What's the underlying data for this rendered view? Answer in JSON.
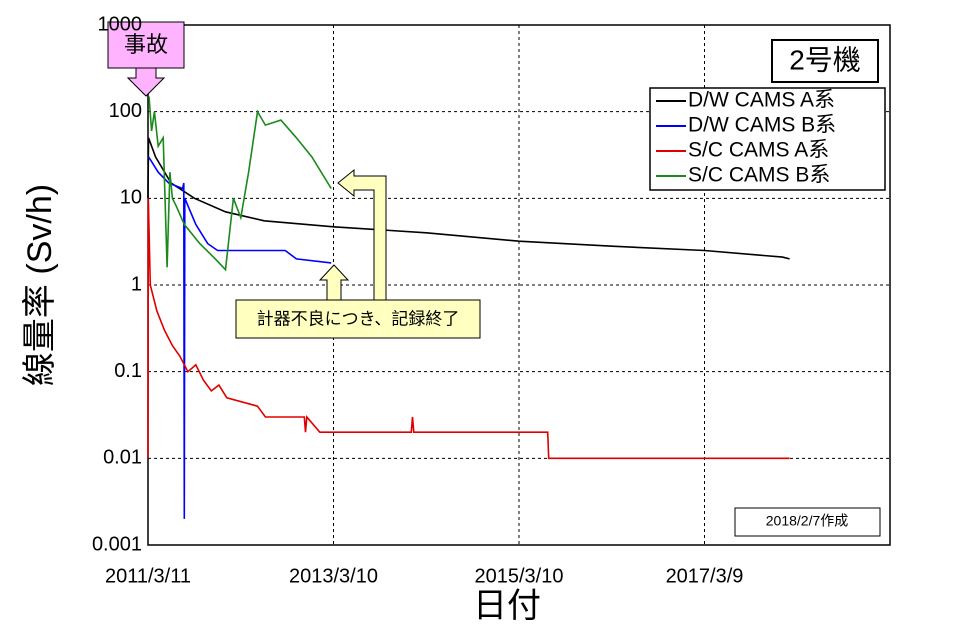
{
  "chart_data": {
    "type": "line",
    "title": "2号機",
    "xlabel": "日付",
    "ylabel": "線量率 (Sv/h)",
    "annotations": [
      "事故",
      "計器不良につき、記録終了",
      "2018/2/7作成"
    ],
    "log_y": true,
    "grid": true,
    "legend": "upper right",
    "xlim": [
      "2011/3/11",
      "2019/3/9"
    ],
    "xticks": [
      "2011/3/11",
      "2013/3/10",
      "2015/3/10",
      "2017/3/9"
    ],
    "ylim": [
      0.001,
      1000
    ],
    "yticks": [
      0.001,
      0.01,
      0.1,
      1,
      10,
      100,
      1000
    ],
    "series": [
      {
        "name": "D/W CAMS A系",
        "color": "#000000",
        "x": [
          "2011/3/11",
          "2011/3/13",
          "2011/4/10",
          "2011/6/10",
          "2011/9/10",
          "2012/1/10",
          "2012/6/10",
          "2013/3/10",
          "2014/3/10",
          "2015/3/10",
          "2016/3/10",
          "2017/3/9",
          "2018/1/10",
          "2018/2/7"
        ],
        "values": [
          10,
          50,
          30,
          15,
          10,
          7,
          5.5,
          4.7,
          4,
          3.2,
          2.8,
          2.5,
          2.1,
          2
        ]
      },
      {
        "name": "D/W CAMS B系",
        "color": "#0000ff",
        "x": [
          "2011/3/13",
          "2011/3/20",
          "2011/4/20",
          "2011/6/1",
          "2011/7/25",
          "2011/7/30",
          "2011/8/1",
          "2011/8/3",
          "2011/9/15",
          "2011/11/1",
          "2011/12/10",
          "2012/9/1",
          "2012/10/15",
          "2013/3/1"
        ],
        "values": [
          30,
          28,
          20,
          15,
          13,
          15,
          0.002,
          10,
          5,
          3,
          2.5,
          2.5,
          2,
          1.8
        ]
      },
      {
        "name": "S/C CAMS A系",
        "color": "#e00000",
        "x": [
          "2011/3/11",
          "2011/3/12",
          "2011/3/20",
          "2011/4/15",
          "2011/5/15",
          "2011/6/15",
          "2011/7/15",
          "2011/8/15",
          "2011/9/15",
          "2011/10/15",
          "2011/11/15",
          "2011/12/15",
          "2012/1/15",
          "2012/5/15",
          "2012/6/15",
          "2012/11/15",
          "2012/11/20",
          "2012/11/25",
          "2013/1/15",
          "2014/1/10",
          "2014/1/15",
          "2014/1/20",
          "2015/7/1",
          "2015/7/5",
          "2018/2/7"
        ],
        "values": [
          0.01,
          10,
          1,
          0.5,
          0.3,
          0.2,
          0.15,
          0.1,
          0.12,
          0.08,
          0.06,
          0.07,
          0.05,
          0.04,
          0.03,
          0.03,
          0.02,
          0.03,
          0.02,
          0.02,
          0.03,
          0.02,
          0.02,
          0.01,
          0.01
        ]
      },
      {
        "name": "S/C CAMS B系",
        "color": "#1a8a1a",
        "x": [
          "2011/3/15",
          "2011/3/25",
          "2011/4/5",
          "2011/4/20",
          "2011/5/10",
          "2011/5/25",
          "2011/6/5",
          "2011/6/15",
          "2011/7/1",
          "2011/8/1",
          "2011/10/1",
          "2011/12/1",
          "2012/1/10",
          "2012/2/10",
          "2012/3/10",
          "2012/4/10",
          "2012/5/15",
          "2012/6/15",
          "2012/8/15",
          "2012/10/15",
          "2012/12/15",
          "2013/3/1"
        ],
        "values": [
          150,
          60,
          100,
          40,
          50,
          1.6,
          20,
          10,
          8,
          5,
          3,
          2,
          1.5,
          10,
          6,
          20,
          100,
          70,
          80,
          50,
          30,
          13
        ]
      }
    ]
  }
}
